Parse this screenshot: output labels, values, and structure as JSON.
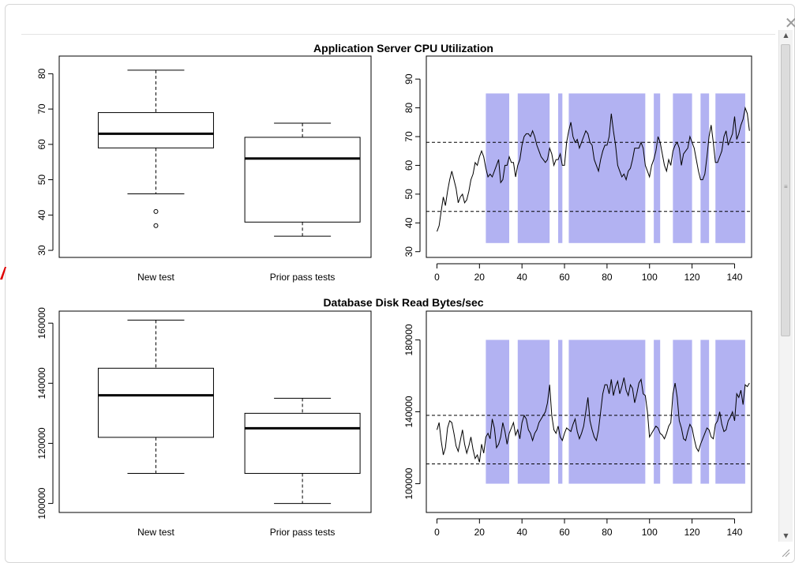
{
  "dialog": {
    "close_label": "✕",
    "close_icon": "close-icon"
  },
  "chart_data": [
    {
      "type": "box",
      "section_title": "Application Server CPU Utilization",
      "categories": [
        "New test",
        "Prior pass tests"
      ],
      "boxes": [
        {
          "whisker_low": 46,
          "q1": 59,
          "median": 63,
          "q3": 69,
          "whisker_high": 81,
          "outliers": [
            41,
            37
          ]
        },
        {
          "whisker_low": 34,
          "q1": 38,
          "median": 56,
          "q3": 62,
          "whisker_high": 66,
          "outliers": []
        }
      ],
      "ylim": [
        28,
        85
      ],
      "yticks": [
        30,
        40,
        50,
        60,
        70,
        80
      ],
      "ytick_labels": [
        "30",
        "40",
        "50",
        "60",
        "70",
        "80"
      ]
    },
    {
      "type": "line",
      "xlim": [
        -5,
        148
      ],
      "ylim": [
        28,
        98
      ],
      "xticks": [
        0,
        20,
        40,
        60,
        80,
        100,
        120,
        140
      ],
      "yticks": [
        30,
        40,
        50,
        60,
        70,
        80,
        90
      ],
      "ytick_labels": [
        "30",
        "40",
        "50",
        "60",
        "70",
        "80",
        "90"
      ],
      "hlines": [
        68,
        44
      ],
      "shade_range": [
        33,
        85
      ],
      "shaded": [
        [
          23,
          34
        ],
        [
          38,
          53
        ],
        [
          57,
          59
        ],
        [
          62,
          98
        ],
        [
          102,
          105
        ],
        [
          111,
          120
        ],
        [
          124,
          128
        ],
        [
          131,
          145
        ]
      ],
      "x_start": 0,
      "y": [
        37,
        39,
        44,
        49,
        46,
        51,
        55,
        58,
        55,
        52,
        47,
        49,
        50,
        47,
        48,
        51,
        55,
        57,
        61,
        60,
        63,
        65,
        63,
        59,
        56,
        57,
        56,
        58,
        60,
        62,
        54,
        55,
        60,
        60,
        63,
        61,
        61,
        56,
        60,
        62,
        67,
        70,
        71,
        71,
        70,
        72,
        70,
        67,
        65,
        63,
        62,
        61,
        62,
        66,
        64,
        60,
        62,
        62,
        64,
        60,
        60,
        68,
        72,
        75,
        70,
        68,
        69,
        66,
        68,
        70,
        72,
        71,
        68,
        67,
        62,
        60,
        58,
        62,
        65,
        67,
        67,
        70,
        78,
        72,
        67,
        60,
        58,
        56,
        57,
        55,
        58,
        59,
        62,
        66,
        66,
        66,
        68,
        66,
        60,
        58,
        56,
        60,
        62,
        65,
        70,
        68,
        64,
        60,
        58,
        62,
        60,
        65,
        67,
        68,
        66,
        60,
        64,
        65,
        66,
        70,
        68,
        66,
        62,
        58,
        55,
        55,
        57,
        63,
        70,
        74,
        68,
        61,
        61,
        63,
        65,
        70,
        72,
        67,
        69,
        71,
        77,
        69,
        71,
        74,
        76,
        80,
        78,
        72
      ]
    },
    {
      "type": "box",
      "section_title": "Database Disk Read Bytes/sec",
      "categories": [
        "New test",
        "Prior pass tests"
      ],
      "boxes": [
        {
          "whisker_low": 110000,
          "q1": 122000,
          "median": 136000,
          "q3": 145000,
          "whisker_high": 161000,
          "outliers": []
        },
        {
          "whisker_low": 100000,
          "q1": 110000,
          "median": 125000,
          "q3": 130000,
          "whisker_high": 135000,
          "outliers": []
        }
      ],
      "ylim": [
        97000,
        164000
      ],
      "yticks": [
        100000,
        120000,
        140000,
        160000
      ],
      "ytick_labels": [
        "100000",
        "120000",
        "140000",
        "160000"
      ]
    },
    {
      "type": "line",
      "xlim": [
        -5,
        148
      ],
      "ylim": [
        84000,
        196000
      ],
      "xticks": [
        0,
        20,
        40,
        60,
        80,
        100,
        120,
        140
      ],
      "yticks": [
        100000,
        140000,
        180000
      ],
      "ytick_labels": [
        "100000",
        "140000",
        "180000"
      ],
      "hlines": [
        138000,
        111000
      ],
      "shade_range": [
        100000,
        180000
      ],
      "shaded": [
        [
          23,
          34
        ],
        [
          38,
          53
        ],
        [
          57,
          59
        ],
        [
          62,
          98
        ],
        [
          102,
          105
        ],
        [
          111,
          120
        ],
        [
          124,
          128
        ],
        [
          131,
          145
        ]
      ],
      "x_start": 0,
      "y": [
        130000,
        134000,
        124000,
        116000,
        120000,
        131000,
        135000,
        134000,
        128000,
        121000,
        118000,
        124000,
        130000,
        122000,
        117000,
        121000,
        126000,
        119000,
        114000,
        116000,
        112000,
        122000,
        117000,
        126000,
        128000,
        125000,
        136000,
        131000,
        120000,
        122000,
        126000,
        134000,
        129000,
        122000,
        128000,
        131000,
        134000,
        127000,
        130000,
        125000,
        134000,
        138000,
        136000,
        130000,
        128000,
        124000,
        128000,
        130000,
        134000,
        136000,
        138000,
        140000,
        145000,
        155000,
        138000,
        130000,
        128000,
        132000,
        126000,
        124000,
        128000,
        131000,
        130000,
        129000,
        133000,
        136000,
        129000,
        125000,
        128000,
        132000,
        140000,
        148000,
        135000,
        130000,
        126000,
        124000,
        130000,
        140000,
        150000,
        155000,
        155000,
        150000,
        158000,
        149000,
        154000,
        157000,
        150000,
        154000,
        159000,
        152000,
        149000,
        155000,
        153000,
        145000,
        150000,
        156000,
        158000,
        150000,
        149000,
        140000,
        126000,
        128000,
        130000,
        132000,
        131000,
        128000,
        127000,
        125000,
        128000,
        132000,
        134000,
        150000,
        156000,
        148000,
        135000,
        131000,
        125000,
        124000,
        129000,
        133000,
        131000,
        125000,
        120000,
        118000,
        122000,
        125000,
        128000,
        131000,
        130000,
        126000,
        125000,
        133000,
        135000,
        140000,
        133000,
        129000,
        130000,
        135000,
        137000,
        140000,
        135000,
        150000,
        148000,
        152000,
        144000,
        155000,
        154000,
        156000
      ]
    }
  ]
}
